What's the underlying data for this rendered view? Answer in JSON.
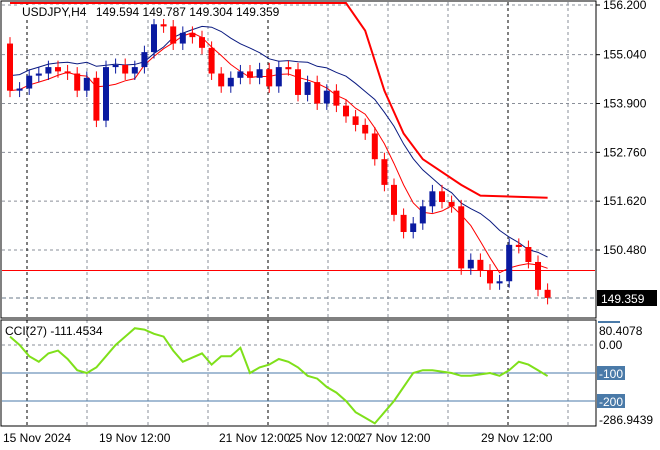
{
  "chart_data": {
    "type": "candlestick",
    "symbol": "USDJPY,H4",
    "ohlc_label": "149.594 149.787 149.304 149.359",
    "current_price": 149.359,
    "current_price_label": "149.359",
    "price_ticks": [
      "156.200",
      "155.040",
      "153.900",
      "152.760",
      "151.620",
      "150.480"
    ],
    "price_tick_values": [
      156.2,
      155.04,
      153.9,
      152.76,
      151.62,
      150.48
    ],
    "ylim": [
      149.0,
      156.3
    ],
    "x_ticks": [
      "15 Nov 2024",
      "19 Nov 12:00",
      "21 Nov 12:00",
      "25 Nov 12:00",
      "27 Nov 12:00",
      "29 Nov 12:00"
    ],
    "x_tick_bars": [
      2,
      14,
      27,
      40,
      52,
      59
    ],
    "first_open": 155.3,
    "closes": [
      154.2,
      154.25,
      154.55,
      154.6,
      154.75,
      154.65,
      154.6,
      154.2,
      154.5,
      153.5,
      154.75,
      154.8,
      154.6,
      154.75,
      155.1,
      155.75,
      155.7,
      155.3,
      155.55,
      155.45,
      155.2,
      154.6,
      154.3,
      154.5,
      154.65,
      154.5,
      154.7,
      154.3,
      154.75,
      154.7,
      154.1,
      154.4,
      153.9,
      154.2,
      153.85,
      153.6,
      153.4,
      153.2,
      152.6,
      152.0,
      151.3,
      150.9,
      151.1,
      151.5,
      151.85,
      151.6,
      151.5,
      150.05,
      150.25,
      150.0,
      149.7,
      149.75,
      150.6,
      150.55,
      150.2,
      149.55,
      149.36
    ],
    "horizontal_line": 150.0,
    "step_line": [
      [
        0,
        156.3
      ],
      [
        35,
        156.3
      ],
      [
        37,
        155.6
      ],
      [
        39,
        154.2
      ],
      [
        41,
        153.2
      ],
      [
        43,
        152.6
      ],
      [
        47,
        152.0
      ],
      [
        49,
        151.75
      ],
      [
        56,
        151.7
      ]
    ],
    "bull_color": "#0a1aa0",
    "bear_color": "#ff0000",
    "cci": {
      "label": "CCI(27) -111.4534",
      "ticks": [
        "80.4078",
        "0.00",
        "-100",
        "-200",
        "-286.9439"
      ],
      "tick_values": [
        80.4078,
        0,
        -100,
        -200,
        -286.9439
      ],
      "values": [
        30,
        0,
        -40,
        -60,
        -30,
        -20,
        -50,
        -90,
        -100,
        -80,
        -40,
        0,
        30,
        60,
        55,
        40,
        30,
        -20,
        -60,
        -45,
        -30,
        -70,
        -40,
        -40,
        -10,
        -100,
        -80,
        -70,
        -50,
        -60,
        -80,
        -110,
        -120,
        -150,
        -170,
        -200,
        -240,
        -260,
        -280,
        -240,
        -200,
        -150,
        -100,
        -90,
        -90,
        -95,
        -100,
        -110,
        -110,
        -105,
        -100,
        -110,
        -90,
        -60,
        -70,
        -90,
        -111
      ]
    }
  }
}
